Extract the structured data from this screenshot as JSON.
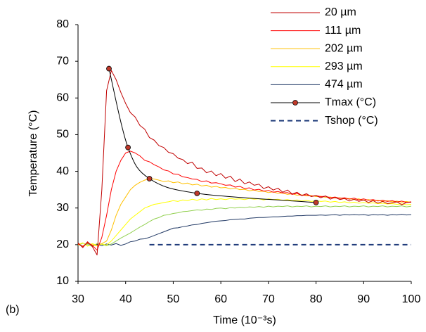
{
  "chart_data": {
    "type": "line",
    "panel_label": "(b)",
    "x_label": "Time (10⁻³s)",
    "y_label": "Temperature (°C)",
    "xlim": [
      30,
      100
    ],
    "xticks": [
      30,
      40,
      50,
      60,
      70,
      80,
      90,
      100
    ],
    "ylim": [
      10,
      80
    ],
    "yticks": [
      10,
      20,
      30,
      40,
      50,
      60,
      70,
      80
    ],
    "grid": false,
    "legend": "upper-right",
    "x": [
      30,
      31,
      32,
      33,
      34,
      35,
      36,
      37,
      38,
      39,
      40,
      41,
      42,
      43,
      44,
      45,
      46,
      47,
      48,
      49,
      50,
      51,
      52,
      53,
      54,
      55,
      56,
      57,
      58,
      59,
      60,
      61,
      62,
      63,
      64,
      65,
      66,
      67,
      68,
      69,
      70,
      71,
      72,
      73,
      74,
      75,
      76,
      77,
      78,
      79,
      80,
      81,
      82,
      83,
      84,
      85,
      86,
      87,
      88,
      89,
      90,
      91,
      92,
      93,
      94,
      95,
      96,
      97,
      98,
      99,
      100
    ],
    "series": [
      {
        "name": "20 µm",
        "color": "#c00000",
        "values": [
          20.5,
          19.2,
          20.8,
          19.5,
          17.2,
          35,
          62,
          67.5,
          65,
          61.5,
          58.5,
          56,
          54.8,
          52.5,
          51.5,
          49.2,
          48.5,
          47,
          46.5,
          45.2,
          44.8,
          43.6,
          43.2,
          42.1,
          42.5,
          40.8,
          40.9,
          39.6,
          40.1,
          38.8,
          39.4,
          38.1,
          38.7,
          37.2,
          37.9,
          36.6,
          37.1,
          36.2,
          36.5,
          35.3,
          35.8,
          34.9,
          35.4,
          34.3,
          34.9,
          33.8,
          34.3,
          33.4,
          33.9,
          33.1,
          33.4,
          32.8,
          33.3,
          32.4,
          32.9,
          32.3,
          32.6,
          31.9,
          32.4,
          31.8,
          32.2,
          31.5,
          32,
          31.3,
          31.8,
          31.2,
          31.4,
          31.7,
          30.9,
          31.5,
          31.6
        ]
      },
      {
        "name": "111 µm",
        "color": "#ff0000",
        "values": [
          20.2,
          19.5,
          20.6,
          19.8,
          18.5,
          22,
          28,
          35,
          40,
          43,
          45,
          45.5,
          45,
          44.2,
          43,
          42.6,
          41.8,
          41.2,
          40.4,
          40.1,
          39.3,
          39.2,
          38.5,
          38.3,
          37.9,
          37.8,
          37.2,
          37.4,
          36.8,
          36.9,
          36.6,
          36.2,
          36.3,
          35.7,
          35.9,
          35.3,
          35.5,
          34.9,
          35.1,
          34.6,
          34.8,
          34.3,
          34.5,
          34.1,
          34.2,
          33.7,
          34,
          33.4,
          33.6,
          33.2,
          33.4,
          33.1,
          33.2,
          32.8,
          33,
          32.6,
          32.8,
          32.4,
          32.7,
          32.2,
          32.5,
          32.1,
          32.3,
          31.9,
          32.1,
          31.8,
          32,
          31.6,
          31.9,
          31.5,
          31.7
        ]
      },
      {
        "name": "202 µm",
        "color": "#ffc000",
        "values": [
          20.1,
          19.6,
          20.4,
          20,
          19.7,
          20.3,
          21,
          24,
          28,
          31,
          33,
          35,
          36.2,
          37,
          37.6,
          38,
          37.9,
          37.6,
          37.2,
          37.4,
          36.9,
          37.1,
          36.6,
          36.8,
          36.3,
          36.5,
          36,
          36.2,
          35.7,
          35.9,
          35.5,
          35.6,
          35.2,
          35.4,
          35,
          35.1,
          34.7,
          34.9,
          34.5,
          34.6,
          34.2,
          34.4,
          34,
          34.1,
          33.7,
          33.9,
          33.5,
          33.6,
          33.3,
          33.4,
          33.1,
          33.2,
          32.9,
          33,
          32.7,
          32.8,
          32.5,
          32.6,
          32.3,
          32.5,
          32.1,
          32.3,
          32,
          32.1,
          31.8,
          32,
          31.7,
          31.9,
          31.6,
          31.8,
          31.5
        ]
      },
      {
        "name": "293 µm",
        "color": "#ffff00",
        "values": [
          20,
          20.5,
          19.6,
          20.3,
          19.8,
          20.2,
          19.9,
          21,
          22.5,
          24,
          25.5,
          27,
          28,
          29,
          30,
          30.5,
          31,
          31.2,
          31.5,
          31.7,
          32,
          31.8,
          32.2,
          32,
          32.4,
          32.1,
          32.5,
          32.2,
          32.6,
          32.3,
          32.5,
          32.3,
          32.6,
          32.4,
          32.5,
          32.3,
          32.6,
          32.4,
          32.5,
          32.2,
          32.5,
          32.3,
          32.4,
          32.1,
          32.3,
          32,
          32.2,
          31.9,
          32.1,
          31.8,
          32,
          31.8,
          31.9,
          31.6,
          31.8,
          31.5,
          31.7,
          31.4,
          31.6,
          31.3,
          31.5,
          31.3,
          31.4,
          31.2,
          31.3,
          31.1,
          31.2,
          31,
          31.1,
          30.9,
          31
        ]
      },
      {
        "name": null,
        "color": "#92d050",
        "values": [
          19.8,
          20.4,
          20,
          19.5,
          20.3,
          20.1,
          19.7,
          20.2,
          21,
          21.8,
          22.5,
          23.2,
          24,
          24.8,
          25.5,
          26.3,
          27,
          27.4,
          28,
          28.2,
          28.5,
          28.7,
          29,
          29.1,
          29.3,
          29.5,
          29.4,
          29.7,
          29.6,
          29.9,
          30,
          29.8,
          30.1,
          30,
          30.2,
          30.1,
          30.3,
          30.2,
          30.4,
          30.2,
          30.5,
          30.3,
          30.5,
          30.4,
          30.6,
          30.3,
          30.5,
          30.4,
          30.6,
          30.3,
          30.5,
          30.4,
          30.6,
          30.3,
          30.5,
          30.4,
          30.6,
          30.3,
          30.5,
          30.4,
          30.6,
          30.3,
          30.5,
          30.4,
          30.6,
          30.3,
          30.5,
          30.4,
          30.6,
          30.3,
          30.5
        ]
      },
      {
        "name": "474 µm",
        "color": "#203864",
        "values": [
          20.2,
          19.6,
          20.3,
          19.8,
          20.1,
          19.7,
          20.2,
          19.9,
          20.3,
          19.8,
          20.2,
          20.8,
          21,
          21.5,
          21.6,
          22,
          22.5,
          23,
          23.5,
          24,
          24.5,
          24.6,
          24.9,
          25.1,
          25.4,
          25.5,
          25.8,
          26,
          26.2,
          26.4,
          26.5,
          26.6,
          26.8,
          26.9,
          27,
          27,
          27.2,
          27.3,
          27.4,
          27.4,
          27.5,
          27.6,
          27.6,
          27.7,
          27.8,
          27.8,
          27.9,
          27.9,
          28,
          28,
          28,
          28.1,
          28,
          28.1,
          28.2,
          28,
          28.2,
          28.1,
          28.2,
          28.1,
          28.2,
          28,
          28.2,
          28.1,
          28.2,
          28,
          28.2,
          28.1,
          28.3,
          28.1,
          28.2
        ]
      },
      {
        "name": "Tmax (°C)",
        "color": "#000000",
        "marker_color": "#c0392b",
        "markers": true,
        "smooth": true,
        "x": [
          36.5,
          40.5,
          45,
          55,
          80
        ],
        "values": [
          68,
          46.5,
          38,
          34,
          31.5
        ]
      },
      {
        "name": "Tshop (°C)",
        "color": "#1f3b7a",
        "dashed": true,
        "x": [
          45,
          100
        ],
        "values": [
          20,
          20
        ]
      }
    ]
  }
}
